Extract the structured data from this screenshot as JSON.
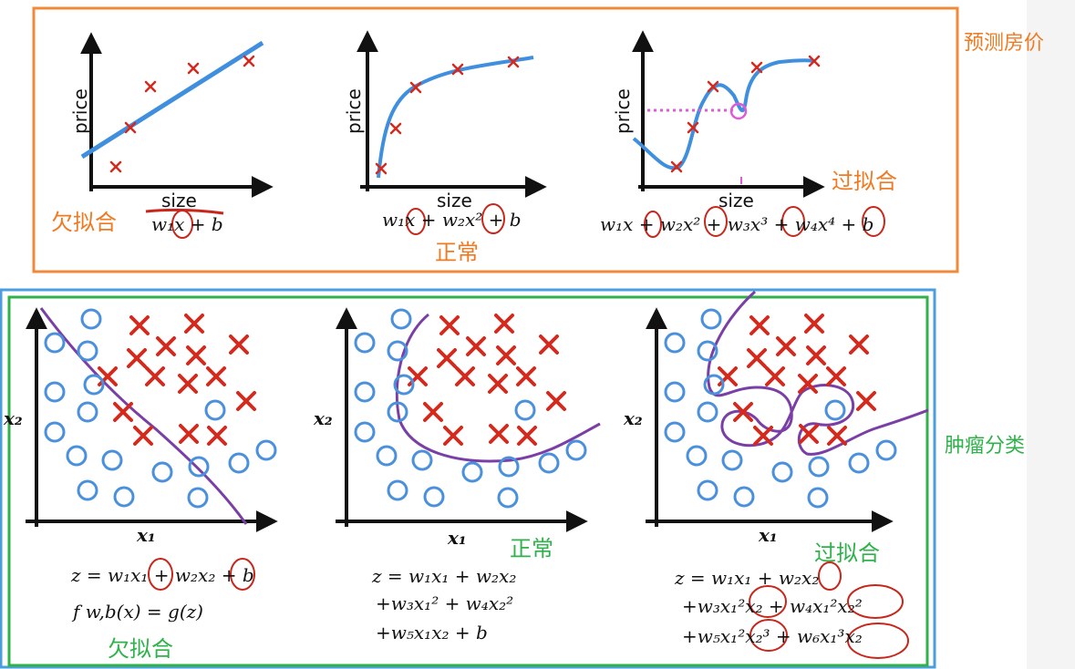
{
  "regression_section": {
    "title": "预测房价",
    "panels": [
      {
        "x_label": "size",
        "y_label": "price",
        "formula": "w₁x + b",
        "fit_label": "欠拟合"
      },
      {
        "x_label": "size",
        "y_label": "price",
        "formula": "w₁x + w₂x² + b",
        "fit_label": "正常"
      },
      {
        "x_label": "size",
        "y_label": "price",
        "formula": "w₁x + w₂x² + w₃x³ + w₄x⁴ + b",
        "fit_label": "过拟合"
      }
    ]
  },
  "classification_section": {
    "title": "肿瘤分类",
    "panels": [
      {
        "x_label": "x₁",
        "y_label": "x₂",
        "formula_lines": [
          "z = w₁x₁ + w₂x₂ + b",
          "f w,b(x) = g(z)"
        ],
        "fit_label": "欠拟合"
      },
      {
        "x_label": "x₁",
        "y_label": "x₂",
        "formula_lines": [
          "z = w₁x₁ + w₂x₂",
          "+w₃x₁² + w₄x₂²",
          "+w₅x₁x₂ + b"
        ],
        "fit_label": "正常"
      },
      {
        "x_label": "x₁",
        "y_label": "x₂",
        "formula_lines": [
          "z = w₁x₁ + w₂x₂",
          "+w₃x₁²x₂ + w₄x₁²x₂²",
          "+w₅x₁²x₂³ + w₆x₁³x₂"
        ],
        "fit_label": "过拟合"
      }
    ]
  },
  "colors": {
    "orange_frame": "#f08a3a",
    "blue_frame": "#4a9ee0",
    "green_frame": "#2fb24a",
    "cross": "#d42a1e",
    "circle": "#4a90dd",
    "curve_blue": "#3f8fde",
    "boundary_purple": "#7a3fa6",
    "annotation_red": "#c8261b",
    "dotted_pink": "#e05ad8"
  }
}
